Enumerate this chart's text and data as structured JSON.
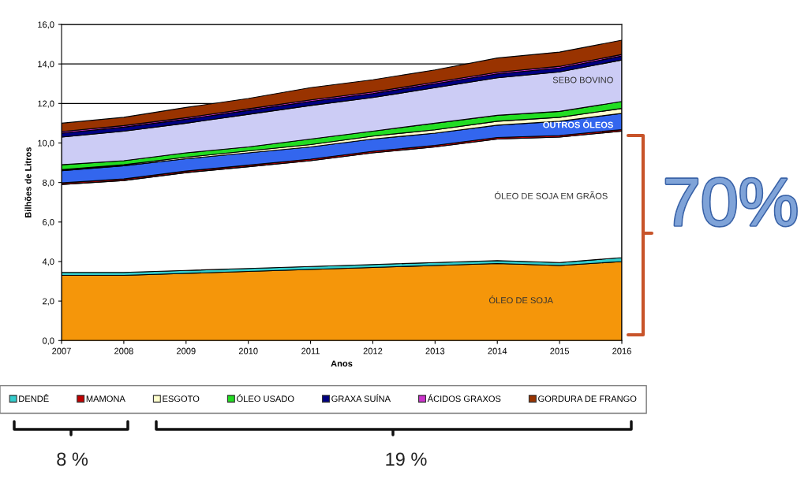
{
  "chart_data": {
    "type": "area",
    "stacked": true,
    "xlabel": "Anos",
    "ylabel": "Bilhões de Litros",
    "x": [
      2007,
      2008,
      2009,
      2010,
      2011,
      2012,
      2013,
      2014,
      2015,
      2016
    ],
    "xlim": [
      2007,
      2016
    ],
    "xticks": [
      2007,
      2008,
      2009,
      2010,
      2011,
      2012,
      2013,
      2014,
      2015,
      2016
    ],
    "ylim": [
      0,
      16
    ],
    "yticks": [
      {
        "value": 0,
        "label": "0,0"
      },
      {
        "value": 2,
        "label": "2,0"
      },
      {
        "value": 4,
        "label": "4,0"
      },
      {
        "value": 6,
        "label": "6,0"
      },
      {
        "value": 8,
        "label": "8,0"
      },
      {
        "value": 10,
        "label": "10,0"
      },
      {
        "value": 12,
        "label": "12,0"
      },
      {
        "value": 14,
        "label": "14,0"
      },
      {
        "value": 16,
        "label": "16,0"
      }
    ],
    "grid": "y",
    "legend": "bottom",
    "series": [
      {
        "color": "#f5960a",
        "values": [
          3.3,
          3.3,
          3.4,
          3.5,
          3.6,
          3.7,
          3.8,
          3.9,
          3.8,
          4.0
        ]
      },
      {
        "name": "DENDÊ",
        "color": "#33cccc",
        "values": [
          0.15,
          0.15,
          0.15,
          0.15,
          0.15,
          0.15,
          0.15,
          0.15,
          0.15,
          0.2
        ]
      },
      {
        "color": "#ffffff",
        "values": [
          4.45,
          4.65,
          4.95,
          5.15,
          5.35,
          5.65,
          5.85,
          6.15,
          6.35,
          6.4
        ]
      },
      {
        "name": "MAMONA",
        "color": "#c00000",
        "values": [
          0.08,
          0.08,
          0.08,
          0.08,
          0.08,
          0.08,
          0.08,
          0.08,
          0.08,
          0.08
        ]
      },
      {
        "color": "#3366ee",
        "values": [
          0.62,
          0.67,
          0.62,
          0.62,
          0.62,
          0.62,
          0.62,
          0.62,
          0.72,
          0.82
        ]
      },
      {
        "name": "ESGOTO",
        "color": "#ffffcc",
        "values": [
          0.05,
          0.05,
          0.08,
          0.1,
          0.12,
          0.15,
          0.17,
          0.2,
          0.2,
          0.25
        ]
      },
      {
        "name": "ÓLEO USADO",
        "color": "#22dd22",
        "values": [
          0.25,
          0.2,
          0.22,
          0.2,
          0.28,
          0.25,
          0.33,
          0.3,
          0.3,
          0.35
        ]
      },
      {
        "color": "#ccccf5",
        "values": [
          1.4,
          1.5,
          1.5,
          1.65,
          1.7,
          1.7,
          1.8,
          1.9,
          2.0,
          2.1
        ]
      },
      {
        "name": "GRAXA SUÍNA",
        "color": "#000080",
        "values": [
          0.2,
          0.2,
          0.2,
          0.2,
          0.2,
          0.2,
          0.2,
          0.2,
          0.2,
          0.2
        ]
      },
      {
        "name": "ÁCIDOS GRAXOS",
        "color": "#cc33cc",
        "values": [
          0.08,
          0.08,
          0.08,
          0.08,
          0.08,
          0.08,
          0.08,
          0.08,
          0.08,
          0.08
        ]
      },
      {
        "name": "GORDURA DE FRANGO",
        "color": "#993300",
        "values": [
          0.42,
          0.42,
          0.52,
          0.52,
          0.62,
          0.62,
          0.62,
          0.72,
          0.72,
          0.72
        ]
      }
    ],
    "annotations": [
      "SEBO BOVINO",
      "OUTROS ÓLEOS",
      "ÓLEO DE SOJA EM GRÃOS",
      "ÓLEO DE SOJA",
      "70%",
      "8 %",
      "19 %"
    ]
  }
}
